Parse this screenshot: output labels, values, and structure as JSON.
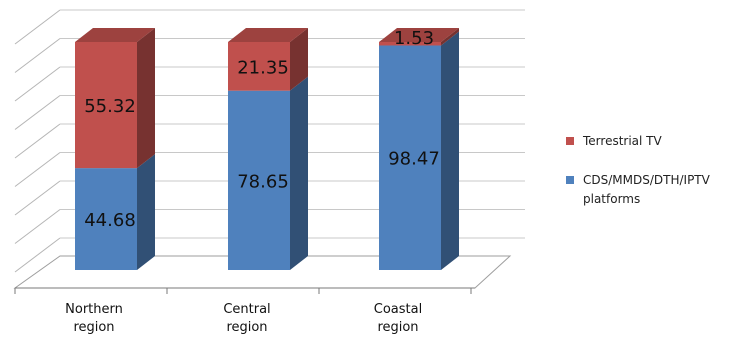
{
  "chart_data": {
    "type": "bar",
    "stacked": true,
    "style": "3d",
    "categories": [
      "Northern region",
      "Central region",
      "Coastal region"
    ],
    "series": [
      {
        "name": "CDS/MMDS/DTH/IPTV platforms",
        "values": [
          44.68,
          78.65,
          98.47
        ],
        "color": "#4f81bd"
      },
      {
        "name": "Terrestrial TV",
        "values": [
          55.32,
          21.35,
          1.53
        ],
        "color": "#c0504d"
      }
    ],
    "ylim": [
      0,
      100
    ],
    "grid": true,
    "legend_position": "right"
  }
}
